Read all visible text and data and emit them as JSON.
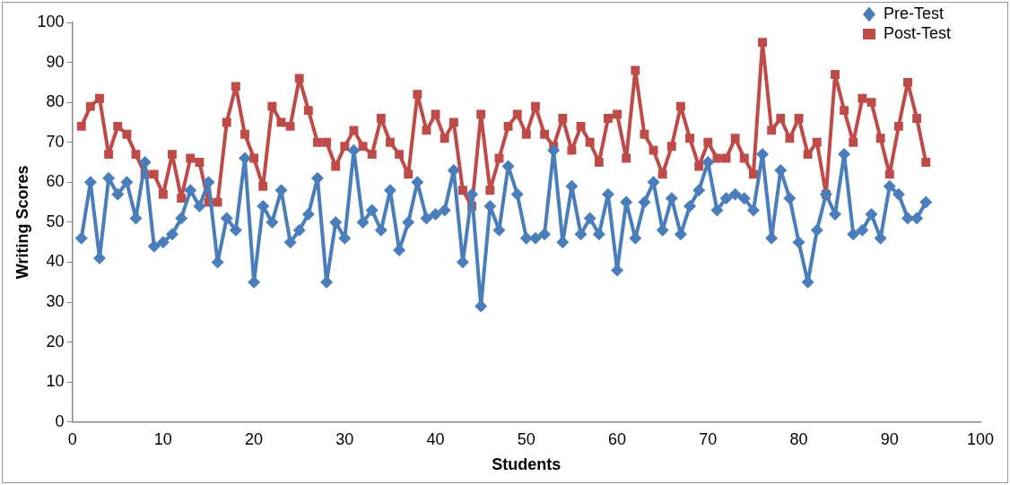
{
  "chart_data": {
    "type": "line",
    "xlabel": "Students",
    "ylabel": "Writing Scores",
    "x": [
      1,
      2,
      3,
      4,
      5,
      6,
      7,
      8,
      9,
      10,
      11,
      12,
      13,
      14,
      15,
      16,
      17,
      18,
      19,
      20,
      21,
      22,
      23,
      24,
      25,
      26,
      27,
      28,
      29,
      30,
      31,
      32,
      33,
      34,
      35,
      36,
      37,
      38,
      39,
      40,
      41,
      42,
      43,
      44,
      45,
      46,
      47,
      48,
      49,
      50,
      51,
      52,
      53,
      54,
      55,
      56,
      57,
      58,
      59,
      60,
      61,
      62,
      63,
      64,
      65,
      66,
      67,
      68,
      69,
      70,
      71,
      72,
      73,
      74,
      75,
      76,
      77,
      78,
      79,
      80,
      81,
      82,
      83,
      84,
      85,
      86,
      87,
      88,
      89,
      90,
      91,
      92,
      93,
      94
    ],
    "series": [
      {
        "name": "Pre-Test",
        "color": "#4a7ebb",
        "marker": "diamond",
        "values": [
          46,
          60,
          41,
          61,
          57,
          60,
          51,
          65,
          44,
          45,
          47,
          51,
          58,
          54,
          60,
          40,
          51,
          48,
          66,
          35,
          54,
          50,
          58,
          45,
          48,
          52,
          61,
          35,
          50,
          46,
          68,
          50,
          53,
          48,
          58,
          43,
          50,
          60,
          51,
          52,
          53,
          63,
          40,
          57,
          29,
          54,
          48,
          64,
          57,
          46,
          46,
          47,
          68,
          45,
          59,
          47,
          51,
          47,
          57,
          38,
          55,
          46,
          55,
          60,
          48,
          56,
          47,
          54,
          58,
          65,
          53,
          56,
          57,
          56,
          53,
          67,
          46,
          63,
          56,
          45,
          35,
          48,
          57,
          52,
          67,
          47,
          48,
          52,
          46,
          59,
          57,
          51,
          51,
          55
        ]
      },
      {
        "name": "Post-Test",
        "color": "#be4b48",
        "marker": "square",
        "values": [
          74,
          79,
          81,
          67,
          74,
          72,
          67,
          62,
          62,
          57,
          67,
          56,
          66,
          65,
          55,
          55,
          75,
          84,
          72,
          66,
          59,
          79,
          75,
          74,
          86,
          78,
          70,
          70,
          64,
          69,
          73,
          69,
          67,
          76,
          70,
          67,
          62,
          82,
          73,
          77,
          71,
          75,
          58,
          54,
          77,
          58,
          66,
          74,
          77,
          72,
          79,
          72,
          69,
          76,
          68,
          74,
          70,
          65,
          76,
          77,
          66,
          88,
          72,
          68,
          62,
          69,
          79,
          71,
          64,
          70,
          66,
          66,
          71,
          66,
          62,
          95,
          73,
          76,
          71,
          76,
          67,
          70,
          57,
          87,
          78,
          70,
          81,
          80,
          71,
          62,
          74,
          85,
          76,
          65
        ]
      }
    ],
    "xlim": [
      0,
      100
    ],
    "xticks": [
      0,
      10,
      20,
      30,
      40,
      50,
      60,
      70,
      80,
      90,
      100
    ],
    "ylim": [
      0,
      100
    ],
    "yticks": [
      0,
      10,
      20,
      30,
      40,
      50,
      60,
      70,
      80,
      90,
      100
    ],
    "grid": false,
    "legend": "top right",
    "line_style": "solid"
  }
}
